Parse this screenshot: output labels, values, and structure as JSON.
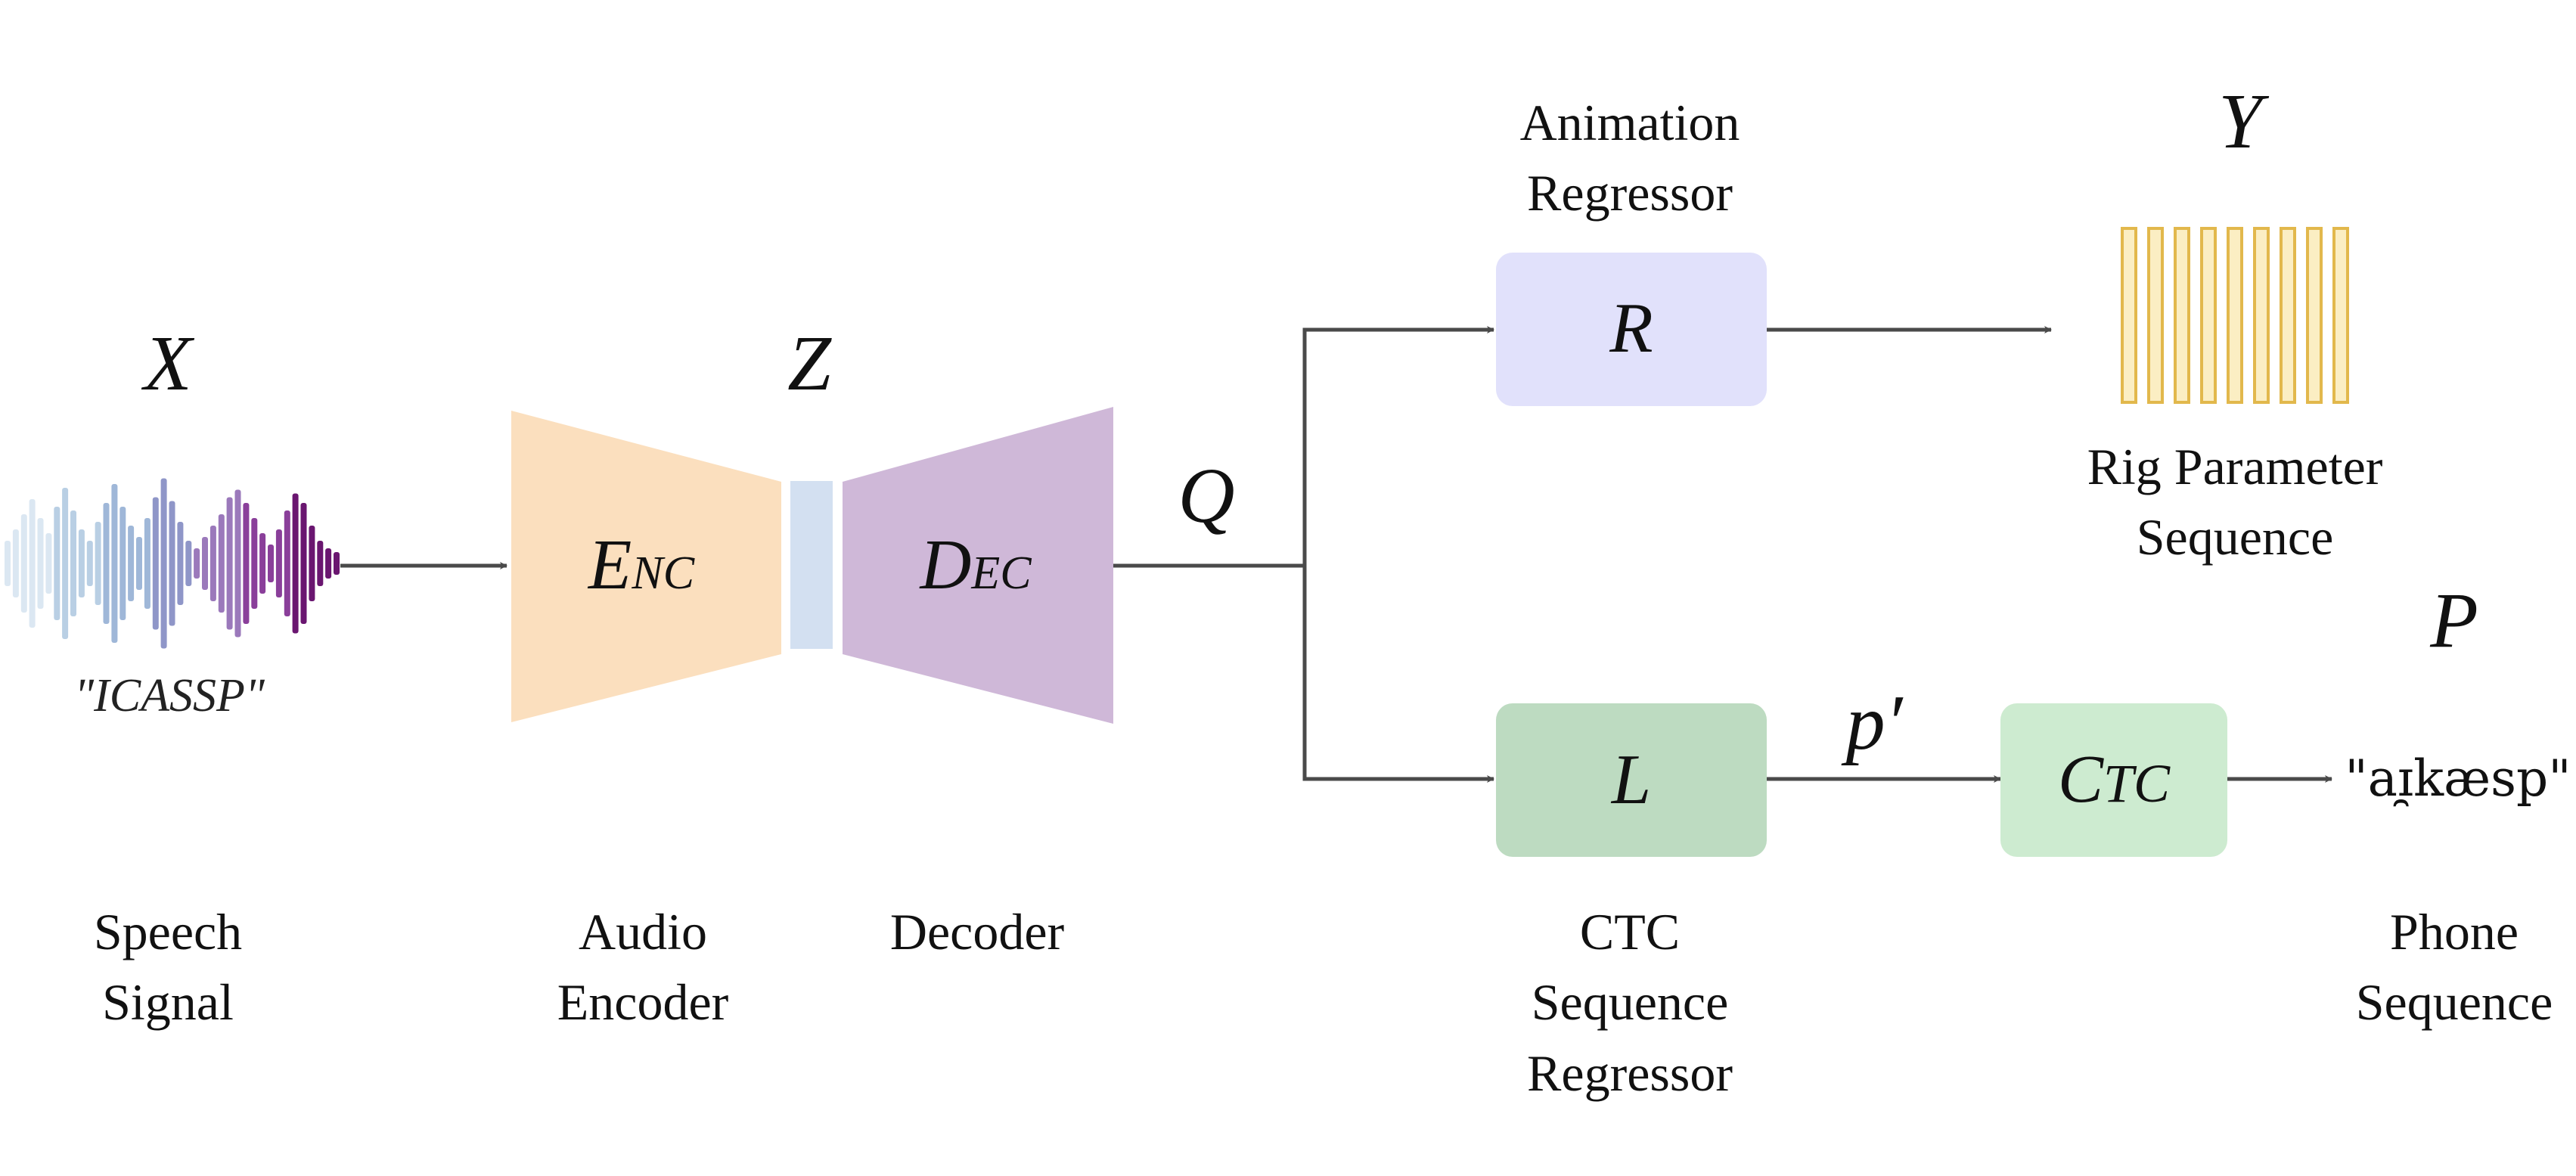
{
  "variables": {
    "x": "X",
    "z": "Z",
    "q": "Q",
    "y": "Y",
    "p_prime": "p′",
    "p": "P"
  },
  "speech": {
    "quote": "\"ICASSP\"",
    "label_line1": "Speech",
    "label_line2": "Signal",
    "waveform_colors": [
      "#dbe7f2",
      "#b9cfe4",
      "#9fb7d8",
      "#8f96c8",
      "#9b79bb",
      "#8a3f9a",
      "#6a1670"
    ]
  },
  "encoder": {
    "main": "E",
    "sub": "NC",
    "label_line1": "Audio",
    "label_line2": "Encoder",
    "color": "#fbdfbe",
    "latent_color": "#d3e0f1"
  },
  "decoder": {
    "main": "D",
    "sub": "EC",
    "label": "Decoder",
    "color": "#cfb8d8"
  },
  "animation": {
    "box_label": "R",
    "label_line1": "Animation",
    "label_line2": "Regressor",
    "color": "#e1e1fb"
  },
  "rig": {
    "label_line1": "Rig Parameter",
    "label_line2": "Sequence",
    "bar_fill": "#fbeec3",
    "bar_stroke": "#e2b84c",
    "bar_count": 9
  },
  "ctc_regressor": {
    "box_label": "L",
    "label_line1": "CTC",
    "label_line2": "Sequence",
    "label_line3": "Regressor",
    "color": "#bddbc1"
  },
  "ctc": {
    "main": "C",
    "sub": "TC",
    "color": "#cdebd0"
  },
  "phone": {
    "transcription": "\"aɪ̯kæsp\"",
    "label_line1": "Phone",
    "label_line2": "Sequence"
  }
}
